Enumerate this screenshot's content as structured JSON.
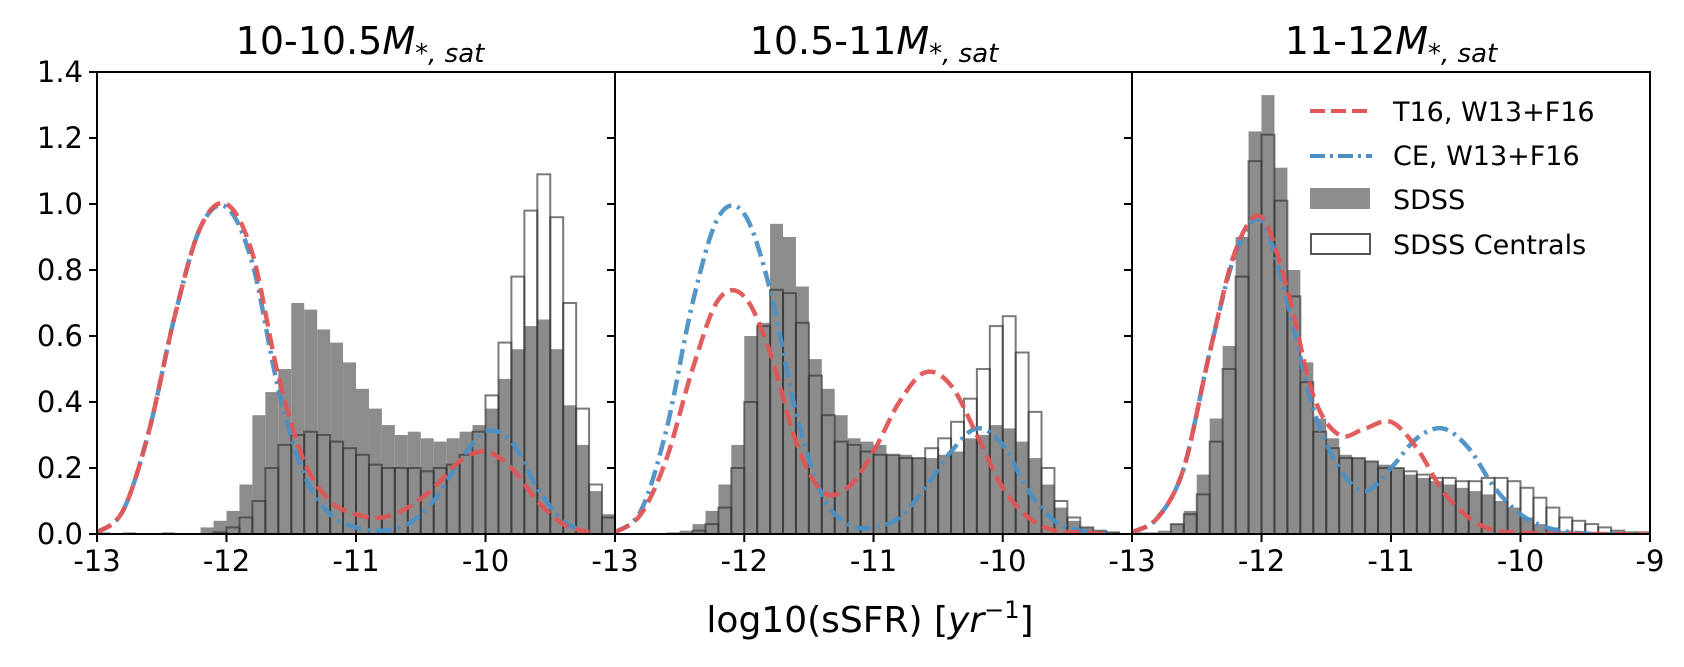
{
  "figure": {
    "xlabel": {
      "main": "log10(sSFR) [",
      "var": "yr",
      "sup": "−1",
      "close": "]"
    }
  },
  "chart_data": [
    {
      "type": "histogram",
      "title": {
        "prefix": "10-10.5",
        "var": "M",
        "sub": "*, sat"
      },
      "xlim": [
        -13,
        -9.1
      ],
      "ylim": [
        0,
        1.4
      ],
      "xticks": [
        -13,
        -12,
        -11,
        -10
      ],
      "xticklabels": [
        "-13",
        "-12",
        "-11",
        "-10"
      ],
      "yticks": [
        0,
        0.2,
        0.4,
        0.6,
        0.8,
        1.0,
        1.2,
        1.4
      ],
      "yticklabels": [
        "0.0",
        "0.2",
        "0.4",
        "0.6",
        "0.8",
        "1.0",
        "1.2",
        "1.4"
      ],
      "bins": {
        "start": -13,
        "width": 0.1
      },
      "sdss": [
        0.005,
        0,
        0.005,
        0,
        0,
        0.005,
        0,
        0,
        0.02,
        0.04,
        0.07,
        0.15,
        0.36,
        0.43,
        0.5,
        0.7,
        0.68,
        0.62,
        0.58,
        0.52,
        0.44,
        0.38,
        0.33,
        0.3,
        0.31,
        0.29,
        0.28,
        0.29,
        0.31,
        0.33,
        0.38,
        0.47,
        0.56,
        0.63,
        0.65,
        0.56,
        0.39,
        0.27,
        0.13,
        0.06
      ],
      "sdss_centrals": [
        0,
        0,
        0,
        0,
        0,
        0,
        0,
        0,
        0,
        0.005,
        0.02,
        0.05,
        0.1,
        0.2,
        0.27,
        0.3,
        0.31,
        0.3,
        0.28,
        0.26,
        0.24,
        0.21,
        0.2,
        0.2,
        0.2,
        0.19,
        0.2,
        0.21,
        0.24,
        0.31,
        0.42,
        0.58,
        0.78,
        0.98,
        1.09,
        0.96,
        0.7,
        0.38,
        0.15,
        0.05
      ],
      "series": [
        {
          "name": "T16, W13+F16",
          "x": [
            -13,
            -12.8,
            -12.6,
            -12.4,
            -12.2,
            -12.0,
            -11.8,
            -11.6,
            -11.4,
            -11.2,
            -11.0,
            -10.8,
            -10.6,
            -10.4,
            -10.2,
            -10.0,
            -9.8,
            -9.6,
            -9.4,
            -9.2
          ],
          "y": [
            0.005,
            0.07,
            0.31,
            0.66,
            0.93,
            1.0,
            0.85,
            0.48,
            0.22,
            0.1,
            0.06,
            0.05,
            0.08,
            0.14,
            0.22,
            0.25,
            0.2,
            0.1,
            0.03,
            0.005
          ]
        },
        {
          "name": "CE, W13+F16",
          "x": [
            -13,
            -12.8,
            -12.6,
            -12.4,
            -12.2,
            -12.0,
            -11.8,
            -11.6,
            -11.4,
            -11.2,
            -11.0,
            -10.8,
            -10.6,
            -10.4,
            -10.2,
            -10.0,
            -9.8,
            -9.6,
            -9.4,
            -9.2
          ],
          "y": [
            0.005,
            0.07,
            0.31,
            0.66,
            0.93,
            0.99,
            0.82,
            0.44,
            0.18,
            0.06,
            0.02,
            0.01,
            0.03,
            0.1,
            0.22,
            0.31,
            0.28,
            0.14,
            0.04,
            0.005
          ]
        }
      ]
    },
    {
      "type": "histogram",
      "title": {
        "prefix": "10.5-11",
        "var": "M",
        "sub": "*, sat"
      },
      "xlim": [
        -13,
        -9.1
      ],
      "ylim": [
        0,
        1.4
      ],
      "xticks": [
        -13,
        -12,
        -11,
        -10
      ],
      "xticklabels": [
        "-13",
        "-12",
        "-11",
        "-10"
      ],
      "yticks": [
        0,
        0.2,
        0.4,
        0.6,
        0.8,
        1.0,
        1.2,
        1.4
      ],
      "bins": {
        "start": -13,
        "width": 0.1
      },
      "sdss": [
        0,
        0,
        0,
        0,
        0.005,
        0.01,
        0.03,
        0.07,
        0.15,
        0.27,
        0.6,
        0.64,
        0.94,
        0.9,
        0.75,
        0.53,
        0.44,
        0.36,
        0.29,
        0.28,
        0.27,
        0.24,
        0.24,
        0.23,
        0.23,
        0.24,
        0.25,
        0.29,
        0.3,
        0.33,
        0.32,
        0.28,
        0.23,
        0.15,
        0.08,
        0.04,
        0.02,
        0.01,
        0.005
      ],
      "sdss_centrals": [
        0,
        0,
        0,
        0,
        0,
        0,
        0.01,
        0.03,
        0.08,
        0.2,
        0.4,
        0.63,
        0.74,
        0.73,
        0.64,
        0.48,
        0.36,
        0.28,
        0.27,
        0.25,
        0.24,
        0.24,
        0.23,
        0.23,
        0.26,
        0.29,
        0.34,
        0.41,
        0.5,
        0.63,
        0.66,
        0.55,
        0.37,
        0.2,
        0.1,
        0.05,
        0.02,
        0.01,
        0.005
      ],
      "series": [
        {
          "name": "T16, W13+F16",
          "x": [
            -13,
            -12.8,
            -12.6,
            -12.4,
            -12.2,
            -12.0,
            -11.8,
            -11.6,
            -11.4,
            -11.2,
            -11.0,
            -10.8,
            -10.6,
            -10.4,
            -10.2,
            -10.0,
            -9.8,
            -9.6,
            -9.4,
            -9.2
          ],
          "y": [
            0.005,
            0.06,
            0.23,
            0.5,
            0.71,
            0.72,
            0.55,
            0.28,
            0.13,
            0.14,
            0.25,
            0.4,
            0.49,
            0.45,
            0.3,
            0.14,
            0.05,
            0.01,
            0.005,
            0
          ]
        },
        {
          "name": "CE, W13+F16",
          "x": [
            -13,
            -12.8,
            -12.6,
            -12.4,
            -12.2,
            -12.0,
            -11.8,
            -11.6,
            -11.4,
            -11.2,
            -11.0,
            -10.8,
            -10.6,
            -10.4,
            -10.2,
            -10.0,
            -9.8,
            -9.6,
            -9.4,
            -9.2
          ],
          "y": [
            0.005,
            0.07,
            0.32,
            0.7,
            0.96,
            0.97,
            0.74,
            0.37,
            0.12,
            0.03,
            0.02,
            0.05,
            0.14,
            0.25,
            0.32,
            0.27,
            0.13,
            0.04,
            0.01,
            0
          ]
        }
      ]
    },
    {
      "type": "histogram",
      "title": {
        "prefix": "11-12",
        "var": "M",
        "sub": "*, sat"
      },
      "xlim": [
        -13,
        -9
      ],
      "ylim": [
        0,
        1.4
      ],
      "xticks": [
        -13,
        -12,
        -11,
        -10,
        -9
      ],
      "xticklabels": [
        "-13",
        "-12",
        "-11",
        "-10",
        "-9"
      ],
      "yticks": [
        0,
        0.2,
        0.4,
        0.6,
        0.8,
        1.0,
        1.2,
        1.4
      ],
      "bins": {
        "start": -13,
        "width": 0.1
      },
      "sdss": [
        0.005,
        0.005,
        0.01,
        0.03,
        0.07,
        0.18,
        0.35,
        0.57,
        0.9,
        1.22,
        1.33,
        1.11,
        0.8,
        0.52,
        0.35,
        0.29,
        0.24,
        0.23,
        0.22,
        0.21,
        0.2,
        0.18,
        0.17,
        0.16,
        0.15,
        0.14,
        0.13,
        0.12,
        0.1,
        0.08,
        0.05,
        0.03,
        0.02,
        0.01,
        0.005,
        0.005,
        0,
        0,
        0,
        0
      ],
      "sdss_centrals": [
        0,
        0,
        0,
        0.03,
        0.06,
        0.12,
        0.28,
        0.5,
        0.78,
        1.13,
        1.21,
        1.01,
        0.72,
        0.46,
        0.31,
        0.26,
        0.23,
        0.23,
        0.22,
        0.2,
        0.2,
        0.19,
        0.18,
        0.17,
        0.17,
        0.16,
        0.16,
        0.17,
        0.17,
        0.16,
        0.14,
        0.11,
        0.08,
        0.05,
        0.04,
        0.03,
        0.02,
        0.01,
        0.005,
        0.005
      ],
      "series": [
        {
          "name": "T16, W13+F16",
          "x": [
            -13,
            -12.8,
            -12.6,
            -12.4,
            -12.2,
            -12.0,
            -11.8,
            -11.6,
            -11.4,
            -11.2,
            -11.0,
            -10.8,
            -10.6,
            -10.4,
            -10.2,
            -10.0,
            -9.8,
            -9.6,
            -9.4,
            -9.2,
            -9.0
          ],
          "y": [
            0.005,
            0.05,
            0.2,
            0.55,
            0.86,
            0.96,
            0.74,
            0.42,
            0.3,
            0.32,
            0.34,
            0.26,
            0.13,
            0.05,
            0.01,
            0.005,
            0,
            0,
            0,
            0,
            0
          ]
        },
        {
          "name": "CE, W13+F16",
          "x": [
            -13,
            -12.8,
            -12.6,
            -12.4,
            -12.2,
            -12.0,
            -11.8,
            -11.6,
            -11.4,
            -11.2,
            -11.0,
            -10.8,
            -10.6,
            -10.4,
            -10.2,
            -10.0,
            -9.8,
            -9.6,
            -9.4,
            -9.2,
            -9.0
          ],
          "y": [
            0.005,
            0.05,
            0.2,
            0.55,
            0.85,
            0.95,
            0.7,
            0.38,
            0.2,
            0.13,
            0.2,
            0.29,
            0.32,
            0.26,
            0.14,
            0.06,
            0.02,
            0.005,
            0,
            0,
            0
          ]
        }
      ]
    }
  ],
  "legend": {
    "items": [
      {
        "label": "T16, W13+F16",
        "style": "dashed",
        "color": "#e05555"
      },
      {
        "label": "CE, W13+F16",
        "style": "dashdot",
        "color": "#4a90c4"
      },
      {
        "label": "SDSS",
        "style": "filled",
        "color": "#8a8a8a"
      },
      {
        "label": "SDSS Centrals",
        "style": "outline",
        "color": "#555555"
      }
    ]
  },
  "colors": {
    "sdss_fill": "#8c8c8c",
    "centrals_edge": "#333333",
    "t16": "#e05555",
    "ce": "#4a90c4"
  }
}
